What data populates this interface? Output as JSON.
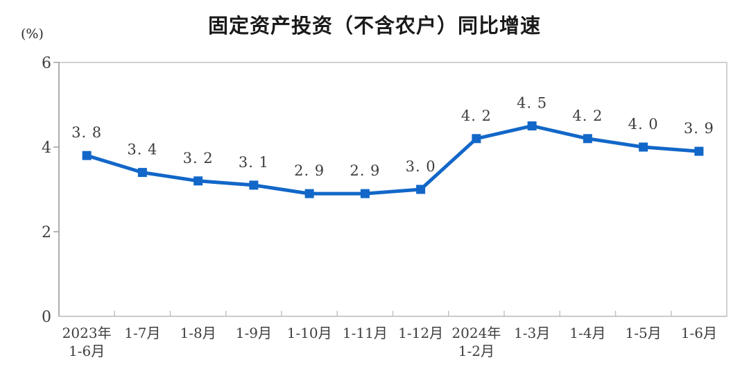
{
  "title": "固定资产投资（不含农户）同比增速",
  "unit_label": "(%)",
  "colors": {
    "line": "#1267C8",
    "title_text": "#1a1a1a",
    "label_text": "#3d3d3d",
    "axis": "#c2c2c2",
    "axis_dark": "#9e9e9e",
    "background": "#ffffff"
  },
  "chart_data": {
    "type": "line",
    "title": "固定资产投资（不含农户）同比增速",
    "ylabel": "(%)",
    "categories": [
      "2023年\n1-6月",
      "1-7月",
      "1-8月",
      "1-9月",
      "1-10月",
      "1-11月",
      "1-12月",
      "2024年\n1-2月",
      "1-3月",
      "1-4月",
      "1-5月",
      "1-6月"
    ],
    "values": [
      3.8,
      3.4,
      3.2,
      3.1,
      2.9,
      2.9,
      3.0,
      4.2,
      4.5,
      4.2,
      4.0,
      3.9
    ],
    "point_labels": [
      "3. 8",
      "3. 4",
      "3. 2",
      "3. 1",
      "2. 9",
      "2. 9",
      "3. 0",
      "4. 2",
      "4. 5",
      "4. 2",
      "4. 0",
      "3. 9"
    ],
    "ylim": [
      0,
      6
    ],
    "yticks": [
      0,
      2,
      4,
      6
    ],
    "grid": false,
    "legend": "none",
    "marker": "square"
  }
}
